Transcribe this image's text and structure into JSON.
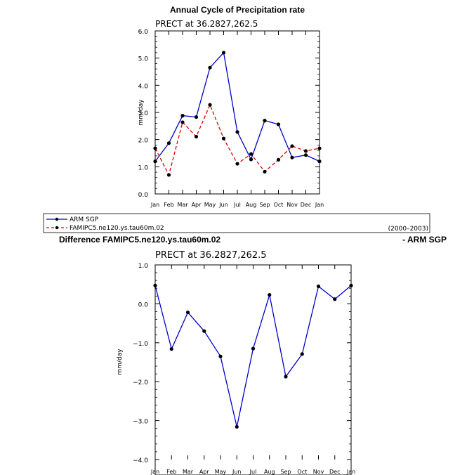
{
  "chart_data": [
    {
      "type": "line",
      "title": "Annual Cycle of Precipitation rate",
      "subtitle": "PRECT at 36.2827,262.5",
      "ylabel": "mm/day",
      "xlabel": "",
      "categories": [
        "Jan",
        "Feb",
        "Mar",
        "Apr",
        "May",
        "Jun",
        "Jul",
        "Aug",
        "Sep",
        "Oct",
        "Nov",
        "Dec",
        "Jan"
      ],
      "ylim": [
        0.0,
        6.0
      ],
      "yticks": [
        "0.0",
        "1.0",
        "2.0",
        "3.0",
        "4.0",
        "5.0",
        "6.0"
      ],
      "series": [
        {
          "name": "ARM SGP",
          "color": "#0000cc",
          "dash": "solid",
          "values": [
            1.2,
            1.87,
            2.88,
            2.83,
            4.65,
            5.2,
            2.28,
            1.27,
            2.7,
            2.56,
            1.34,
            1.43,
            1.2
          ]
        },
        {
          "name": "FAMIPC5.ne120.ys.tau60m.02",
          "color": "#dd0000",
          "dash": "dashed",
          "values": [
            1.68,
            0.7,
            2.64,
            2.11,
            3.28,
            2.04,
            1.11,
            1.47,
            0.82,
            1.26,
            1.76,
            1.58,
            1.68
          ]
        }
      ],
      "legend_note": "(2000–2003)"
    },
    {
      "type": "line",
      "title": "Difference FAMIPC5.ne120.ys.tau60m.02",
      "title_right": "- ARM SGP",
      "subtitle": "PRECT at 36.2827,262.5",
      "ylabel": "mm/day",
      "xlabel": "",
      "categories": [
        "Jan",
        "Feb",
        "Mar",
        "Apr",
        "May",
        "Jun",
        "Jul",
        "Aug",
        "Sep",
        "Oct",
        "Nov",
        "Dec",
        "Jan"
      ],
      "ylim": [
        -4.0,
        1.0
      ],
      "yticks": [
        "-4.0",
        "-3.0",
        "-2.0",
        "-1.0",
        "0.0",
        "1.0"
      ],
      "series": [
        {
          "name": "Difference",
          "color": "#0000cc",
          "dash": "solid",
          "values": [
            0.47,
            -1.16,
            -0.22,
            -0.7,
            -1.35,
            -3.16,
            -1.15,
            0.23,
            -1.87,
            -1.29,
            0.45,
            0.12,
            0.47
          ]
        }
      ]
    }
  ]
}
